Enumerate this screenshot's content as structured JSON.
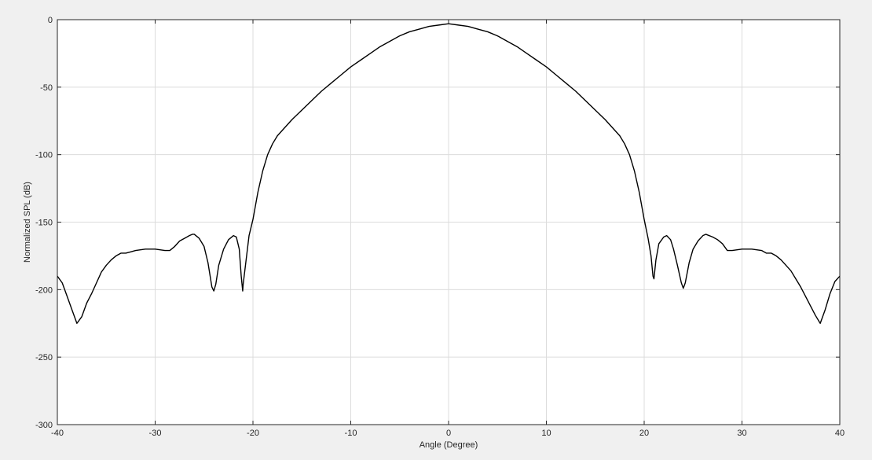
{
  "chart_data": {
    "type": "line",
    "title": "",
    "xlabel": "Angle (Degree)",
    "ylabel": "Normalized SPL (dB)",
    "xlim": [
      -40,
      40
    ],
    "ylim": [
      -300,
      0
    ],
    "xticks": [
      -40,
      -30,
      -20,
      -10,
      0,
      10,
      20,
      30,
      40
    ],
    "yticks": [
      0,
      -50,
      -100,
      -150,
      -200,
      -250,
      -300
    ],
    "grid": true,
    "legend": "none",
    "colors": {
      "line": "#000000",
      "grid": "#dcdcdc",
      "axes_bg": "#ffffff",
      "figure_bg": "#f0f0f0",
      "axis": "#262626"
    },
    "series": [
      {
        "points": [
          [
            -40,
            -190
          ],
          [
            -39.5,
            -195
          ],
          [
            -39,
            -205
          ],
          [
            -38.5,
            -215
          ],
          [
            -38,
            -225
          ],
          [
            -37.5,
            -220
          ],
          [
            -37,
            -210
          ],
          [
            -36.5,
            -203
          ],
          [
            -36,
            -195
          ],
          [
            -35.5,
            -187
          ],
          [
            -35,
            -182
          ],
          [
            -34.5,
            -178
          ],
          [
            -34,
            -175
          ],
          [
            -33.5,
            -173
          ],
          [
            -33,
            -173
          ],
          [
            -32.5,
            -172
          ],
          [
            -32,
            -171
          ],
          [
            -31,
            -170
          ],
          [
            -30,
            -170
          ],
          [
            -29,
            -171
          ],
          [
            -28.5,
            -171
          ],
          [
            -28,
            -168
          ],
          [
            -27.5,
            -164
          ],
          [
            -27,
            -162
          ],
          [
            -26.5,
            -160
          ],
          [
            -26.2,
            -159
          ],
          [
            -26,
            -159
          ],
          [
            -25.5,
            -162
          ],
          [
            -25,
            -168
          ],
          [
            -24.6,
            -180
          ],
          [
            -24.2,
            -198
          ],
          [
            -24,
            -201
          ],
          [
            -23.8,
            -196
          ],
          [
            -23.5,
            -182
          ],
          [
            -23,
            -170
          ],
          [
            -22.5,
            -163
          ],
          [
            -22,
            -160
          ],
          [
            -21.7,
            -161
          ],
          [
            -21.4,
            -170
          ],
          [
            -21.2,
            -190
          ],
          [
            -21.05,
            -201
          ],
          [
            -21,
            -196
          ],
          [
            -20.7,
            -178
          ],
          [
            -20.4,
            -160
          ],
          [
            -20,
            -148
          ],
          [
            -19.5,
            -128
          ],
          [
            -19,
            -112
          ],
          [
            -18.5,
            -100
          ],
          [
            -18,
            -92
          ],
          [
            -17.5,
            -86
          ],
          [
            -17,
            -82
          ],
          [
            -16.5,
            -78
          ],
          [
            -16,
            -74
          ],
          [
            -15,
            -67
          ],
          [
            -14,
            -60
          ],
          [
            -13,
            -53
          ],
          [
            -12,
            -47
          ],
          [
            -11,
            -41
          ],
          [
            -10,
            -35
          ],
          [
            -9,
            -30
          ],
          [
            -8,
            -25
          ],
          [
            -7,
            -20
          ],
          [
            -6,
            -16
          ],
          [
            -5,
            -12
          ],
          [
            -4,
            -9
          ],
          [
            -3,
            -7
          ],
          [
            -2,
            -5
          ],
          [
            -1,
            -4
          ],
          [
            0,
            -3
          ],
          [
            1,
            -4
          ],
          [
            2,
            -5
          ],
          [
            3,
            -7
          ],
          [
            4,
            -9
          ],
          [
            5,
            -12
          ],
          [
            6,
            -16
          ],
          [
            7,
            -20
          ],
          [
            8,
            -25
          ],
          [
            9,
            -30
          ],
          [
            10,
            -35
          ],
          [
            11,
            -41
          ],
          [
            12,
            -47
          ],
          [
            13,
            -53
          ],
          [
            14,
            -60
          ],
          [
            15,
            -67
          ],
          [
            16,
            -74
          ],
          [
            16.5,
            -78
          ],
          [
            17,
            -82
          ],
          [
            17.5,
            -86
          ],
          [
            18,
            -92
          ],
          [
            18.5,
            -100
          ],
          [
            19,
            -112
          ],
          [
            19.5,
            -128
          ],
          [
            20,
            -148
          ],
          [
            20.4,
            -162
          ],
          [
            20.7,
            -175
          ],
          [
            20.9,
            -190
          ],
          [
            21,
            -192
          ],
          [
            21.2,
            -178
          ],
          [
            21.5,
            -166
          ],
          [
            22,
            -161
          ],
          [
            22.3,
            -160
          ],
          [
            22.7,
            -163
          ],
          [
            23,
            -170
          ],
          [
            23.4,
            -182
          ],
          [
            23.8,
            -195
          ],
          [
            24,
            -199
          ],
          [
            24.2,
            -195
          ],
          [
            24.6,
            -180
          ],
          [
            25,
            -170
          ],
          [
            25.5,
            -164
          ],
          [
            26,
            -160
          ],
          [
            26.3,
            -159
          ],
          [
            27,
            -161
          ],
          [
            27.5,
            -163
          ],
          [
            28,
            -166
          ],
          [
            28.5,
            -171
          ],
          [
            29,
            -171
          ],
          [
            30,
            -170
          ],
          [
            31,
            -170
          ],
          [
            32,
            -171
          ],
          [
            32.5,
            -173
          ],
          [
            33,
            -173
          ],
          [
            33.5,
            -175
          ],
          [
            34,
            -178
          ],
          [
            34.5,
            -182
          ],
          [
            35,
            -186
          ],
          [
            35.5,
            -192
          ],
          [
            36,
            -198
          ],
          [
            36.5,
            -205
          ],
          [
            37,
            -212
          ],
          [
            37.5,
            -219
          ],
          [
            38,
            -225
          ],
          [
            38.5,
            -215
          ],
          [
            39,
            -203
          ],
          [
            39.5,
            -194
          ],
          [
            40,
            -190
          ]
        ]
      }
    ]
  }
}
